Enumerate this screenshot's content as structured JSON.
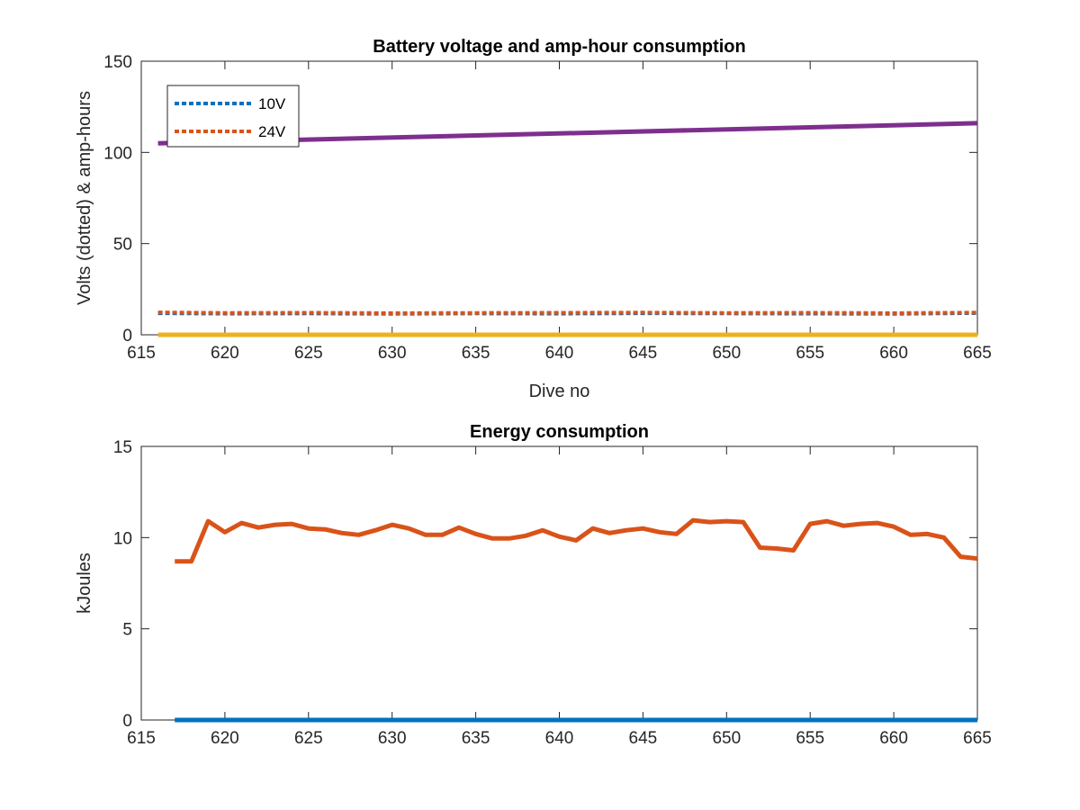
{
  "chart_data": [
    {
      "type": "line",
      "title": "Battery voltage and amp-hour consumption",
      "xlabel": "Dive no",
      "ylabel": "Volts (dotted) & amp-hours",
      "xlim": [
        615,
        665
      ],
      "ylim": [
        0,
        150
      ],
      "xticks": [
        615,
        620,
        625,
        630,
        635,
        640,
        645,
        650,
        655,
        660,
        665
      ],
      "yticks": [
        0,
        50,
        100,
        150
      ],
      "grid": false,
      "legend": "top-left",
      "series": [
        {
          "name": "10V",
          "style": "dotted",
          "color": "#0072BD",
          "x": [
            616,
            620,
            625,
            630,
            635,
            640,
            645,
            650,
            655,
            660,
            665
          ],
          "y": [
            11.8,
            11.6,
            11.7,
            11.5,
            11.7,
            11.6,
            11.8,
            11.7,
            11.6,
            11.5,
            11.9
          ]
        },
        {
          "name": "24V",
          "style": "dotted",
          "color": "#D95319",
          "x": [
            616,
            620,
            625,
            630,
            635,
            640,
            645,
            650,
            655,
            660,
            665
          ],
          "y": [
            12.3,
            12.0,
            12.1,
            11.9,
            12.0,
            12.1,
            12.2,
            12.0,
            12.1,
            11.9,
            12.2
          ]
        },
        {
          "style": "solid",
          "color": "#7E2F8E",
          "x": [
            616,
            665
          ],
          "y": [
            105,
            116
          ]
        },
        {
          "style": "solid",
          "color": "#EDB120",
          "x": [
            616,
            665
          ],
          "y": [
            0,
            0
          ]
        }
      ]
    },
    {
      "type": "line",
      "title": "Energy consumption",
      "xlabel": "",
      "ylabel": "kJoules",
      "xlim": [
        615,
        665
      ],
      "ylim": [
        0,
        15
      ],
      "xticks": [
        615,
        620,
        625,
        630,
        635,
        640,
        645,
        650,
        655,
        660,
        665
      ],
      "yticks": [
        0,
        5,
        10,
        15
      ],
      "grid": false,
      "series": [
        {
          "style": "solid",
          "color": "#D95319",
          "x": [
            617,
            618,
            619,
            620,
            621,
            622,
            623,
            624,
            625,
            626,
            627,
            628,
            629,
            630,
            631,
            632,
            633,
            634,
            635,
            636,
            637,
            638,
            639,
            640,
            641,
            642,
            643,
            644,
            645,
            646,
            647,
            648,
            649,
            650,
            651,
            652,
            653,
            654,
            655,
            656,
            657,
            658,
            659,
            660,
            661,
            662,
            663,
            664,
            665
          ],
          "y": [
            8.7,
            8.7,
            10.9,
            10.3,
            10.8,
            10.55,
            10.7,
            10.75,
            10.5,
            10.45,
            10.25,
            10.15,
            10.4,
            10.7,
            10.5,
            10.15,
            10.15,
            10.55,
            10.2,
            9.95,
            9.95,
            10.1,
            10.4,
            10.05,
            9.85,
            10.5,
            10.25,
            10.4,
            10.5,
            10.3,
            10.2,
            10.95,
            10.85,
            10.9,
            10.85,
            9.45,
            9.4,
            9.3,
            10.75,
            10.9,
            10.65,
            10.75,
            10.8,
            10.6,
            10.15,
            10.2,
            10.0,
            8.95,
            8.85
          ]
        },
        {
          "style": "solid",
          "color": "#0072BD",
          "x": [
            617,
            665
          ],
          "y": [
            0,
            0
          ]
        }
      ]
    }
  ]
}
